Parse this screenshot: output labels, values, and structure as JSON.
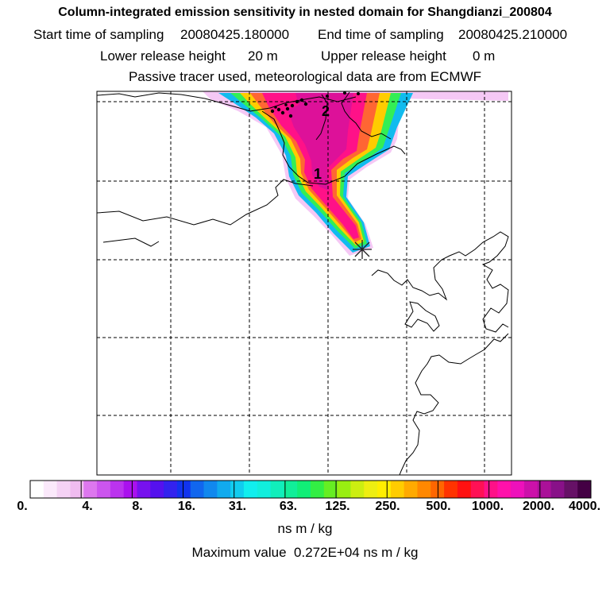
{
  "header": {
    "title": "Column-integrated emission sensitivity in nested domain for Shangdianzi_200804",
    "start_label": "Start time of sampling",
    "start_value": "20080425.180000",
    "end_label": "End time of sampling",
    "end_value": "20080425.210000",
    "lower_label": "Lower release height",
    "lower_value": "20 m",
    "upper_label": "Upper release height",
    "upper_value": "0 m",
    "subtitle": "Passive tracer used, meteorological data are from ECMWF"
  },
  "map": {
    "markers": [
      {
        "label": "1",
        "kind": "time-marker"
      },
      {
        "label": "2",
        "kind": "time-marker"
      }
    ],
    "release_site_symbol": "asterisk"
  },
  "colorbar": {
    "tick_labels": [
      "0.",
      "4.",
      "8.",
      "16.",
      "31.",
      "63.",
      "125.",
      "250.",
      "500.",
      "1000.",
      "2000.",
      "4000."
    ],
    "colors": [
      "#ffffff",
      "#fbe9fb",
      "#f5d2f5",
      "#f0bcf0",
      "#dd77ee",
      "#cc55ee",
      "#bb33ee",
      "#aa11ee",
      "#7711ee",
      "#5511ee",
      "#3322ee",
      "#1133ee",
      "#1166ee",
      "#1188ee",
      "#11aaee",
      "#11ccee",
      "#11eeee",
      "#11eedd",
      "#11eebb",
      "#11ee99",
      "#11ee77",
      "#33ee44",
      "#66ee22",
      "#99ee11",
      "#ccee11",
      "#eeee11",
      "#ffee00",
      "#ffcc00",
      "#ffaa00",
      "#ff8800",
      "#ff6600",
      "#ff3300",
      "#ff1111",
      "#ff1155",
      "#ff1188",
      "#ff11aa",
      "#ee11bb",
      "#cc11aa",
      "#aa1199",
      "#881188",
      "#661166",
      "#440044"
    ],
    "units": "ns m / kg"
  },
  "footer": {
    "max_label": "Maximum value",
    "max_value": "0.272E+04",
    "max_units": "ns m / kg"
  }
}
